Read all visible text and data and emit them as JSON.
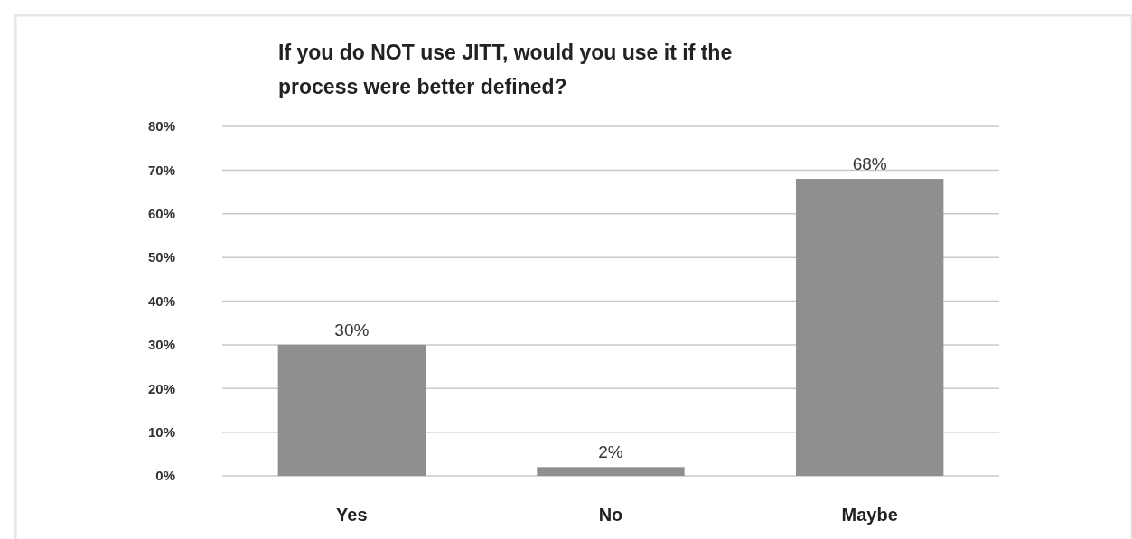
{
  "chart_data": {
    "type": "bar",
    "title": "If you do NOT use JITT, would you use it if the process were better defined?",
    "categories": [
      "Yes",
      "No",
      "Maybe"
    ],
    "values": [
      30,
      2,
      68
    ],
    "value_labels": [
      "30%",
      "2%",
      "68%"
    ],
    "color": "#8f8f8f",
    "ylim": [
      0,
      80
    ],
    "yticks": [
      {
        "value": 0,
        "label": "0%"
      },
      {
        "value": 10,
        "label": "10%"
      },
      {
        "value": 20,
        "label": "20%"
      },
      {
        "value": 30,
        "label": "30%"
      },
      {
        "value": 40,
        "label": "40%"
      },
      {
        "value": 50,
        "label": "50%"
      },
      {
        "value": 60,
        "label": "60%"
      },
      {
        "value": 70,
        "label": "70%"
      },
      {
        "value": 80,
        "label": "80%"
      }
    ],
    "grid": "y"
  }
}
